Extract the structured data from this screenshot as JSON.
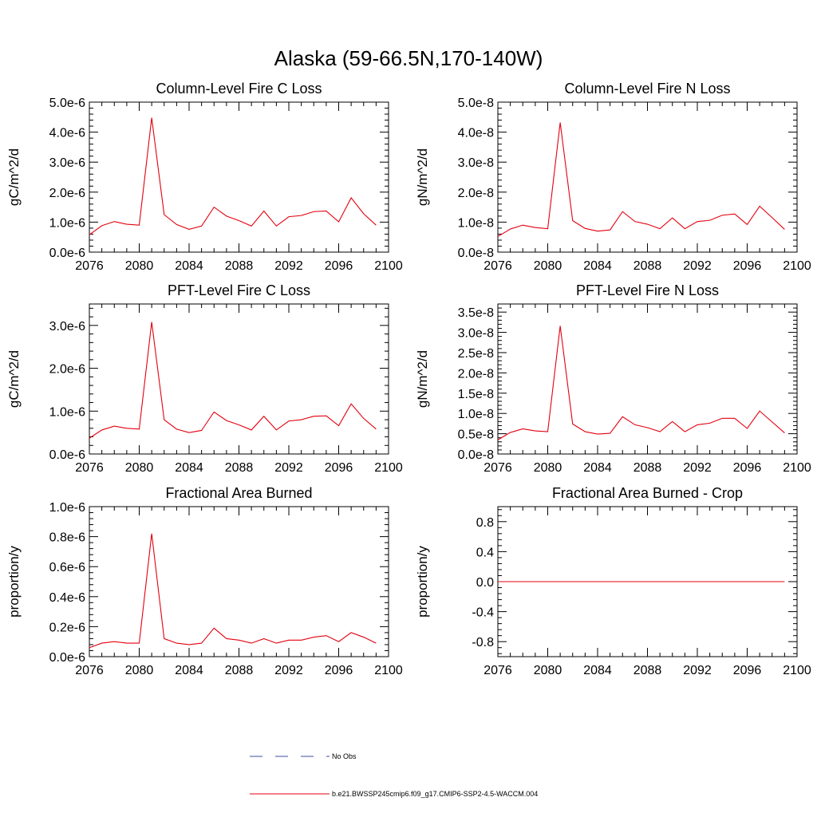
{
  "figure": {
    "title": "Alaska (59-66.5N,170-140W)"
  },
  "legend": {
    "entries": [
      {
        "label": "No Obs",
        "color": "#3b4fa0",
        "style": "dashed"
      },
      {
        "label": "b.e21.BWSSP245cmip6.f09_g17.CMIP6-SSP2-4.5-WACCM.004",
        "color": "#e3000f",
        "style": "solid"
      }
    ]
  },
  "colors": {
    "series": "#e3000f",
    "axis": "#000000",
    "background": "#ffffff"
  },
  "chart_data": [
    {
      "id": "col-fire-c",
      "type": "line",
      "title": "Column-Level Fire C Loss",
      "ylabel": "gC/m^2/d",
      "xlim": [
        2076,
        2100
      ],
      "ylim": [
        0,
        5e-06
      ],
      "xticks": [
        2076,
        2080,
        2084,
        2088,
        2092,
        2096,
        2100
      ],
      "yticks": [
        0,
        1e-06,
        2e-06,
        3e-06,
        4e-06,
        5e-06
      ],
      "ytick_labels": [
        "0.0e-6",
        "1.0e-6",
        "2.0e-6",
        "3.0e-6",
        "4.0e-6",
        "5.0e-6"
      ],
      "x": [
        2076,
        2077,
        2078,
        2079,
        2080,
        2081,
        2082,
        2083,
        2084,
        2085,
        2086,
        2087,
        2088,
        2089,
        2090,
        2091,
        2092,
        2093,
        2094,
        2095,
        2096,
        2097,
        2098,
        2099
      ],
      "series": [
        {
          "values": [
            5.8e-07,
            8.8e-07,
            1.02e-06,
            9.3e-07,
            9e-07,
            4.48e-06,
            1.25e-06,
            9.2e-07,
            7.6e-07,
            8.7e-07,
            1.5e-06,
            1.2e-06,
            1.05e-06,
            8.7e-07,
            1.37e-06,
            8.7e-07,
            1.18e-06,
            1.22e-06,
            1.35e-06,
            1.37e-06,
            1.01e-06,
            1.81e-06,
            1.28e-06,
            9e-07
          ]
        }
      ]
    },
    {
      "id": "col-fire-n",
      "type": "line",
      "title": "Column-Level Fire N Loss",
      "ylabel": "gN/m^2/d",
      "xlim": [
        2076,
        2100
      ],
      "ylim": [
        0,
        5e-08
      ],
      "xticks": [
        2076,
        2080,
        2084,
        2088,
        2092,
        2096,
        2100
      ],
      "yticks": [
        0,
        1e-08,
        2e-08,
        3e-08,
        4e-08,
        5e-08
      ],
      "ytick_labels": [
        "0.0e-8",
        "1.0e-8",
        "2.0e-8",
        "3.0e-8",
        "4.0e-8",
        "5.0e-8"
      ],
      "x": [
        2076,
        2077,
        2078,
        2079,
        2080,
        2081,
        2082,
        2083,
        2084,
        2085,
        2086,
        2087,
        2088,
        2089,
        2090,
        2091,
        2092,
        2093,
        2094,
        2095,
        2096,
        2097,
        2098,
        2099
      ],
      "series": [
        {
          "values": [
            5.2e-09,
            7.7e-09,
            9e-09,
            8.2e-09,
            7.8e-09,
            4.32e-08,
            1.05e-08,
            7.9e-09,
            7e-09,
            7.4e-09,
            1.35e-08,
            1.02e-08,
            9.3e-09,
            7.8e-09,
            1.14e-08,
            7.8e-09,
            1.02e-08,
            1.06e-08,
            1.23e-08,
            1.27e-08,
            9.2e-09,
            1.53e-08,
            1.15e-08,
            7.6e-09
          ]
        }
      ]
    },
    {
      "id": "pft-fire-c",
      "type": "line",
      "title": "PFT-Level Fire C Loss",
      "ylabel": "gC/m^2/d",
      "xlim": [
        2076,
        2100
      ],
      "ylim": [
        0,
        3.5e-06
      ],
      "xticks": [
        2076,
        2080,
        2084,
        2088,
        2092,
        2096,
        2100
      ],
      "yticks": [
        0,
        1e-06,
        2e-06,
        3e-06
      ],
      "ytick_labels": [
        "0.0e-6",
        "1.0e-6",
        "2.0e-6",
        "3.0e-6"
      ],
      "x": [
        2076,
        2077,
        2078,
        2079,
        2080,
        2081,
        2082,
        2083,
        2084,
        2085,
        2086,
        2087,
        2088,
        2089,
        2090,
        2091,
        2092,
        2093,
        2094,
        2095,
        2096,
        2097,
        2098,
        2099
      ],
      "series": [
        {
          "values": [
            3.7e-07,
            5.6e-07,
            6.5e-07,
            6e-07,
            5.8e-07,
            3.08e-06,
            8e-07,
            5.8e-07,
            5e-07,
            5.5e-07,
            9.8e-07,
            7.8e-07,
            6.8e-07,
            5.6e-07,
            8.8e-07,
            5.6e-07,
            7.7e-07,
            8e-07,
            8.8e-07,
            8.9e-07,
            6.6e-07,
            1.17e-06,
            8.3e-07,
            5.8e-07
          ]
        }
      ]
    },
    {
      "id": "pft-fire-n",
      "type": "line",
      "title": "PFT-Level Fire N Loss",
      "ylabel": "gN/m^2/d",
      "xlim": [
        2076,
        2100
      ],
      "ylim": [
        0,
        3.7e-08
      ],
      "xticks": [
        2076,
        2080,
        2084,
        2088,
        2092,
        2096,
        2100
      ],
      "yticks": [
        0,
        5e-09,
        1e-08,
        1.5e-08,
        2e-08,
        2.5e-08,
        3e-08,
        3.5e-08
      ],
      "ytick_labels": [
        "0.0e-8",
        "0.5e-8",
        "1.0e-8",
        "1.5e-8",
        "2.0e-8",
        "2.5e-8",
        "3.0e-8",
        "3.5e-8"
      ],
      "x": [
        2076,
        2077,
        2078,
        2079,
        2080,
        2081,
        2082,
        2083,
        2084,
        2085,
        2086,
        2087,
        2088,
        2089,
        2090,
        2091,
        2092,
        2093,
        2094,
        2095,
        2096,
        2097,
        2098,
        2099
      ],
      "series": [
        {
          "values": [
            3.5e-09,
            5.3e-09,
            6.2e-09,
            5.7e-09,
            5.5e-09,
            3.16e-08,
            7.4e-09,
            5.5e-09,
            4.9e-09,
            5.1e-09,
            9.2e-09,
            7.2e-09,
            6.5e-09,
            5.5e-09,
            8e-09,
            5.5e-09,
            7.2e-09,
            7.6e-09,
            8.8e-09,
            8.8e-09,
            6.3e-09,
            1.06e-08,
            7.9e-09,
            5.2e-09
          ]
        }
      ]
    },
    {
      "id": "frac-area-burned",
      "type": "line",
      "title": "Fractional Area Burned",
      "ylabel": "proportion/y",
      "xlim": [
        2076,
        2100
      ],
      "ylim": [
        0,
        1e-06
      ],
      "xticks": [
        2076,
        2080,
        2084,
        2088,
        2092,
        2096,
        2100
      ],
      "yticks": [
        0,
        2e-07,
        4e-07,
        6e-07,
        8e-07,
        1e-06
      ],
      "ytick_labels": [
        "0.0e-6",
        "0.2e-6",
        "0.4e-6",
        "0.6e-6",
        "0.8e-6",
        "1.0e-6"
      ],
      "x": [
        2076,
        2077,
        2078,
        2079,
        2080,
        2081,
        2082,
        2083,
        2084,
        2085,
        2086,
        2087,
        2088,
        2089,
        2090,
        2091,
        2092,
        2093,
        2094,
        2095,
        2096,
        2097,
        2098,
        2099
      ],
      "series": [
        {
          "values": [
            6e-08,
            9e-08,
            1e-07,
            9e-08,
            9e-08,
            8.2e-07,
            1.2e-07,
            9e-08,
            8e-08,
            9e-08,
            1.9e-07,
            1.2e-07,
            1.1e-07,
            9e-08,
            1.2e-07,
            9e-08,
            1.1e-07,
            1.1e-07,
            1.3e-07,
            1.4e-07,
            1e-07,
            1.6e-07,
            1.3e-07,
            9e-08
          ]
        }
      ]
    },
    {
      "id": "frac-area-burned-crop",
      "type": "line",
      "title": "Fractional Area Burned - Crop",
      "ylabel": "proportion/y",
      "xlim": [
        2076,
        2100
      ],
      "ylim": [
        -1.0,
        1.0
      ],
      "xticks": [
        2076,
        2080,
        2084,
        2088,
        2092,
        2096,
        2100
      ],
      "yticks": [
        -0.8,
        -0.4,
        0.0,
        0.4,
        0.8
      ],
      "ytick_labels": [
        "-0.8",
        "-0.4",
        "0.0",
        "0.4",
        "0.8"
      ],
      "x": [
        2076,
        2077,
        2078,
        2079,
        2080,
        2081,
        2082,
        2083,
        2084,
        2085,
        2086,
        2087,
        2088,
        2089,
        2090,
        2091,
        2092,
        2093,
        2094,
        2095,
        2096,
        2097,
        2098,
        2099
      ],
      "series": [
        {
          "values": [
            0,
            0,
            0,
            0,
            0,
            0,
            0,
            0,
            0,
            0,
            0,
            0,
            0,
            0,
            0,
            0,
            0,
            0,
            0,
            0,
            0,
            0,
            0,
            0
          ]
        }
      ]
    }
  ]
}
